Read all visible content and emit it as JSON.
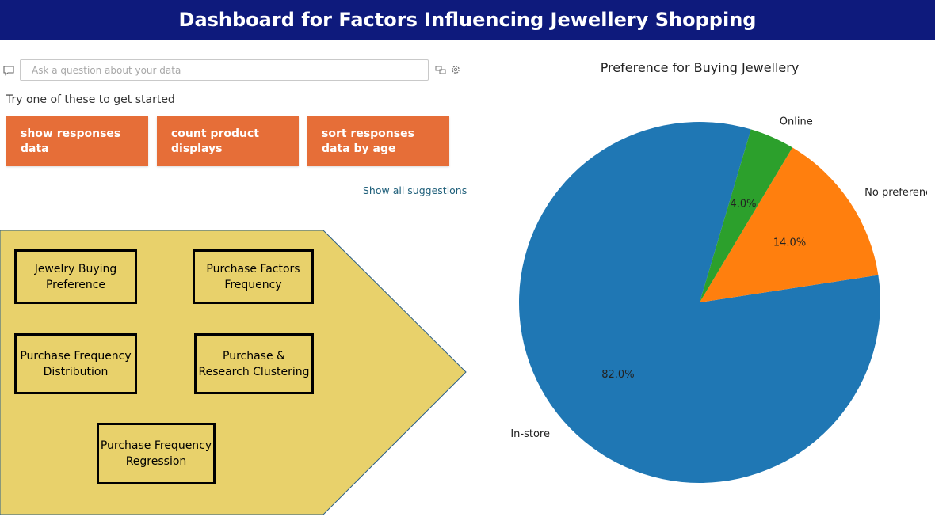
{
  "header": {
    "title": "Dashboard for Factors Influencing Jewellery Shopping"
  },
  "qa": {
    "placeholder": "Ask a question about your data",
    "try_text": "Try one of these to get started",
    "suggestions": [
      "show responses data",
      "count product displays",
      "sort responses data by age"
    ],
    "show_all": "Show all suggestions"
  },
  "nav": {
    "fill_color": "#e8d16b",
    "buttons": [
      "Jewelry Buying Preference",
      "Purchase Factors Frequency",
      "Purchase Frequency Distribution",
      "Purchase & Research Clustering",
      "Purchase Frequency Regression"
    ]
  },
  "chart_data": {
    "type": "pie",
    "title": "Preference for Buying Jewellery",
    "slices": [
      {
        "label": "In-store",
        "value": 82.0,
        "pct_label": "82.0%",
        "color": "#1f77b4"
      },
      {
        "label": "No preference",
        "value": 14.0,
        "pct_label": "14.0%",
        "color": "#ff7f0e"
      },
      {
        "label": "Online",
        "value": 4.0,
        "pct_label": "4.0%",
        "color": "#2ca02c"
      }
    ]
  }
}
